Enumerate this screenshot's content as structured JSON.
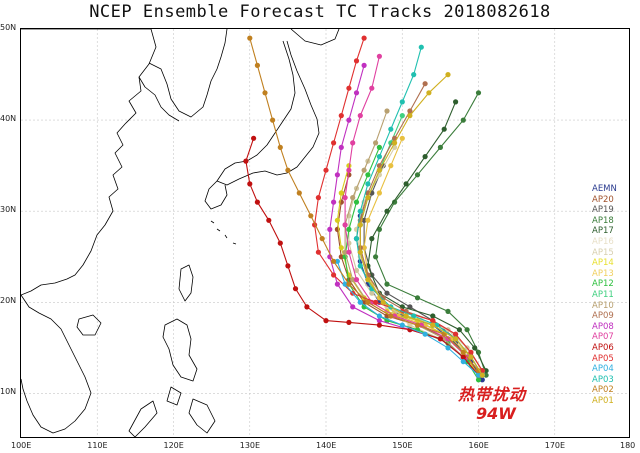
{
  "title": "NCEP Ensemble Forecast TC Tracks 2018082618",
  "map": {
    "lon_range": [
      100,
      180
    ],
    "lat_range": [
      5,
      50
    ],
    "lat_labels": [
      "50N",
      "40N",
      "30N",
      "20N",
      "10N"
    ],
    "lon_labels": [
      "100E",
      "110E",
      "120E",
      "130E",
      "140E",
      "150E",
      "160E",
      "170E",
      "180"
    ]
  },
  "legend": {
    "items": [
      {
        "label": "AEMN",
        "color": "#2a3b8f"
      },
      {
        "label": "AP20",
        "color": "#a0522d"
      },
      {
        "label": "AP19",
        "color": "#555555"
      },
      {
        "label": "AP18",
        "color": "#3b7d3b"
      },
      {
        "label": "AP17",
        "color": "#2e5e2e"
      },
      {
        "label": "AP16",
        "color": "#e8e0c8"
      },
      {
        "label": "AP15",
        "color": "#d8d0b0"
      },
      {
        "label": "AP14",
        "color": "#e8e030"
      },
      {
        "label": "AP13",
        "color": "#f0d060"
      },
      {
        "label": "AP12",
        "color": "#30c040"
      },
      {
        "label": "AP11",
        "color": "#40d080"
      },
      {
        "label": "AP10",
        "color": "#b8a070"
      },
      {
        "label": "AP09",
        "color": "#b07050"
      },
      {
        "label": "AP08",
        "color": "#c030c0"
      },
      {
        "label": "AP07",
        "color": "#e040a0"
      },
      {
        "label": "AP06",
        "color": "#c01010"
      },
      {
        "label": "AP05",
        "color": "#e03030"
      },
      {
        "label": "AP04",
        "color": "#30b0e0"
      },
      {
        "label": "AP03",
        "color": "#20c0b0"
      },
      {
        "label": "AP02",
        "color": "#c08020"
      },
      {
        "label": "AP01",
        "color": "#d0b020"
      }
    ]
  },
  "storm": {
    "label_cn": "热带扰动",
    "label_id": "94W",
    "color": "#d81e1e"
  },
  "tracks": [
    {
      "member": "AEMN",
      "color": "#2a3b8f",
      "points": [
        [
          160.5,
          11.5
        ],
        [
          159,
          13.5
        ],
        [
          157,
          15.5
        ],
        [
          154,
          17.5
        ],
        [
          150,
          18.5
        ],
        [
          147,
          20
        ],
        [
          145.5,
          22
        ],
        [
          144.5,
          24.5
        ],
        [
          144,
          27
        ],
        [
          144.5,
          29.5
        ],
        [
          145.5,
          32
        ]
      ]
    },
    {
      "member": "AP20",
      "color": "#a0522d",
      "points": [
        [
          160,
          12
        ],
        [
          158.5,
          14
        ],
        [
          156,
          16
        ],
        [
          152,
          17.5
        ],
        [
          148,
          18.5
        ],
        [
          145,
          20
        ],
        [
          143,
          22.5
        ],
        [
          142,
          25
        ],
        [
          141.5,
          28
        ],
        [
          142,
          31
        ],
        [
          143,
          34
        ]
      ]
    },
    {
      "member": "AP19",
      "color": "#555555",
      "points": [
        [
          160.5,
          12
        ],
        [
          159,
          14
        ],
        [
          157,
          16
        ],
        [
          154,
          18
        ],
        [
          151,
          19.5
        ],
        [
          148,
          21
        ],
        [
          146,
          23
        ],
        [
          145,
          26
        ],
        [
          145,
          29
        ],
        [
          146,
          32
        ],
        [
          147.5,
          35
        ]
      ]
    },
    {
      "member": "AP18",
      "color": "#3b7d3b",
      "points": [
        [
          161,
          12
        ],
        [
          160,
          14.5
        ],
        [
          158.5,
          17
        ],
        [
          156,
          19
        ],
        [
          152,
          20.5
        ],
        [
          148,
          22
        ],
        [
          146.5,
          25
        ],
        [
          147,
          28
        ],
        [
          149,
          31
        ],
        [
          152,
          34
        ],
        [
          155,
          37
        ],
        [
          158,
          40
        ],
        [
          160,
          43
        ]
      ]
    },
    {
      "member": "AP17",
      "color": "#2e5e2e",
      "points": [
        [
          161,
          12.5
        ],
        [
          159.5,
          15
        ],
        [
          157.5,
          17
        ],
        [
          154,
          18.5
        ],
        [
          150,
          19.5
        ],
        [
          147,
          21
        ],
        [
          145.5,
          24
        ],
        [
          146,
          27
        ],
        [
          148,
          30
        ],
        [
          150.5,
          33
        ],
        [
          153,
          36
        ],
        [
          155.5,
          39
        ],
        [
          157,
          42
        ]
      ]
    },
    {
      "member": "AP16",
      "color": "#d8cfa8",
      "points": [
        [
          160,
          12
        ],
        [
          158,
          14
        ],
        [
          155,
          16
        ],
        [
          151,
          17.5
        ],
        [
          148,
          19.5
        ],
        [
          146,
          22
        ],
        [
          144.5,
          25
        ],
        [
          144,
          28
        ],
        [
          145,
          31
        ],
        [
          147,
          34
        ],
        [
          149,
          37
        ]
      ]
    },
    {
      "member": "AP15",
      "color": "#cfc6a0",
      "points": [
        [
          160.5,
          12.5
        ],
        [
          158.5,
          15
        ],
        [
          156,
          17
        ],
        [
          152.5,
          18
        ],
        [
          149,
          19
        ],
        [
          146,
          21
        ],
        [
          144,
          23.5
        ],
        [
          143,
          26.5
        ],
        [
          143,
          29.5
        ],
        [
          144,
          32.5
        ],
        [
          145.5,
          35.5
        ]
      ]
    },
    {
      "member": "AP14",
      "color": "#d8cc20",
      "points": [
        [
          160,
          12
        ],
        [
          158,
          14.5
        ],
        [
          155.5,
          16.5
        ],
        [
          152,
          18
        ],
        [
          148,
          19
        ],
        [
          145,
          20.5
        ],
        [
          143,
          23
        ],
        [
          142,
          26
        ],
        [
          141.5,
          29
        ],
        [
          142,
          32
        ],
        [
          143,
          35
        ]
      ]
    },
    {
      "member": "AP13",
      "color": "#e8c040",
      "points": [
        [
          160.5,
          12
        ],
        [
          159,
          14
        ],
        [
          156.5,
          16
        ],
        [
          153,
          17.5
        ],
        [
          149.5,
          18.5
        ],
        [
          147,
          20.5
        ],
        [
          145.5,
          23
        ],
        [
          145,
          26
        ],
        [
          145.5,
          29
        ],
        [
          147,
          32
        ],
        [
          148.5,
          35
        ],
        [
          150,
          38
        ]
      ]
    },
    {
      "member": "AP12",
      "color": "#30c040",
      "points": [
        [
          160,
          11.5
        ],
        [
          158.5,
          13.5
        ],
        [
          156,
          15.5
        ],
        [
          152,
          17
        ],
        [
          148,
          18
        ],
        [
          145,
          19.5
        ],
        [
          143,
          22
        ],
        [
          142.5,
          25
        ],
        [
          143,
          28
        ],
        [
          144,
          31
        ],
        [
          145.5,
          34
        ],
        [
          147,
          37
        ]
      ]
    },
    {
      "member": "AP11",
      "color": "#40d080",
      "points": [
        [
          160.5,
          12
        ],
        [
          159,
          14
        ],
        [
          157,
          16
        ],
        [
          154,
          17.5
        ],
        [
          150.5,
          18.5
        ],
        [
          147.5,
          20
        ],
        [
          145.5,
          22.5
        ],
        [
          144.5,
          25.5
        ],
        [
          144.5,
          28.5
        ],
        [
          145.5,
          31.5
        ],
        [
          147,
          34.5
        ],
        [
          148.5,
          37.5
        ],
        [
          150,
          40.5
        ]
      ]
    },
    {
      "member": "AP10",
      "color": "#b8a070",
      "points": [
        [
          160,
          12
        ],
        [
          158,
          14
        ],
        [
          155.5,
          16
        ],
        [
          152,
          17.5
        ],
        [
          148.5,
          18.5
        ],
        [
          145.5,
          20
        ],
        [
          143.5,
          22.5
        ],
        [
          142.5,
          25.5
        ],
        [
          142.5,
          28.5
        ],
        [
          143.5,
          31.5
        ],
        [
          145,
          34.5
        ],
        [
          146.5,
          37.5
        ],
        [
          148,
          41
        ]
      ]
    },
    {
      "member": "AP09",
      "color": "#b07050",
      "points": [
        [
          160.5,
          12.5
        ],
        [
          159,
          14.5
        ],
        [
          157,
          16.5
        ],
        [
          154,
          18
        ],
        [
          150.5,
          19
        ],
        [
          147.5,
          20.5
        ],
        [
          145.5,
          23
        ],
        [
          144.5,
          26
        ],
        [
          144.5,
          29
        ],
        [
          145.5,
          32
        ],
        [
          147,
          35
        ],
        [
          149,
          38
        ],
        [
          151,
          41
        ],
        [
          153,
          44
        ]
      ]
    },
    {
      "member": "AP08",
      "color": "#c030c0",
      "points": [
        [
          160,
          12
        ],
        [
          158,
          14
        ],
        [
          155,
          16
        ],
        [
          151,
          17
        ],
        [
          147,
          18
        ],
        [
          143.5,
          19.5
        ],
        [
          141.5,
          22
        ],
        [
          140.5,
          25
        ],
        [
          140.5,
          28
        ],
        [
          141,
          31
        ],
        [
          141.5,
          34
        ],
        [
          142,
          37
        ],
        [
          143,
          40
        ],
        [
          144,
          43
        ],
        [
          145,
          46
        ]
      ]
    },
    {
      "member": "AP07",
      "color": "#e040a0",
      "points": [
        [
          160.5,
          12
        ],
        [
          158.5,
          14
        ],
        [
          156,
          16
        ],
        [
          152.5,
          17.5
        ],
        [
          149,
          18.5
        ],
        [
          146,
          20
        ],
        [
          144,
          22.5
        ],
        [
          143,
          25.5
        ],
        [
          142.5,
          28.5
        ],
        [
          142.5,
          31.5
        ],
        [
          143,
          34.5
        ],
        [
          143.5,
          37.5
        ],
        [
          144.5,
          40.5
        ],
        [
          146,
          43.5
        ],
        [
          147,
          47
        ]
      ]
    },
    {
      "member": "AP06",
      "color": "#c01010",
      "points": [
        [
          160,
          12
        ],
        [
          158,
          14
        ],
        [
          155,
          16
        ],
        [
          151,
          17
        ],
        [
          147,
          17.5
        ],
        [
          143,
          17.8
        ],
        [
          140,
          18
        ],
        [
          137.5,
          19.5
        ],
        [
          136,
          21.5
        ],
        [
          135,
          24
        ],
        [
          134,
          26.5
        ],
        [
          132.5,
          29
        ],
        [
          131,
          31
        ],
        [
          130,
          33
        ],
        [
          129.5,
          35.5
        ],
        [
          130.5,
          38
        ]
      ]
    },
    {
      "member": "AP05",
      "color": "#e03030",
      "points": [
        [
          160.5,
          12.5
        ],
        [
          159,
          14.5
        ],
        [
          157,
          16.5
        ],
        [
          154,
          18
        ],
        [
          150,
          19
        ],
        [
          146.5,
          20
        ],
        [
          143.5,
          21
        ],
        [
          141,
          23
        ],
        [
          139,
          25.5
        ],
        [
          138.5,
          28.5
        ],
        [
          139,
          31.5
        ],
        [
          140,
          34.5
        ],
        [
          141,
          37.5
        ],
        [
          142,
          40.5
        ],
        [
          143,
          43.5
        ],
        [
          144,
          46.5
        ],
        [
          145,
          49
        ]
      ]
    },
    {
      "member": "AP04",
      "color": "#30b0e0",
      "points": [
        [
          160,
          12
        ],
        [
          158,
          13.5
        ],
        [
          156,
          15
        ],
        [
          153,
          16.5
        ],
        [
          150,
          17.5
        ],
        [
          147,
          18.5
        ],
        [
          144.5,
          20
        ],
        [
          142.5,
          22
        ],
        [
          141.5,
          24.5
        ]
      ]
    },
    {
      "member": "AP03",
      "color": "#20c0b0",
      "points": [
        [
          160.5,
          12
        ],
        [
          159,
          14
        ],
        [
          157,
          16
        ],
        [
          154.5,
          17.5
        ],
        [
          151.5,
          18.5
        ],
        [
          148.5,
          19.5
        ],
        [
          146,
          21.5
        ],
        [
          144.5,
          24
        ],
        [
          144,
          27
        ],
        [
          144.5,
          30
        ],
        [
          145.5,
          33
        ],
        [
          147,
          36
        ],
        [
          148.5,
          39
        ],
        [
          150,
          42
        ],
        [
          151.5,
          45
        ],
        [
          152.5,
          48
        ]
      ]
    },
    {
      "member": "AP02",
      "color": "#c08020",
      "points": [
        [
          160,
          12.5
        ],
        [
          158,
          14.5
        ],
        [
          155.5,
          16.5
        ],
        [
          152,
          17.5
        ],
        [
          148.5,
          18.5
        ],
        [
          145.5,
          20
        ],
        [
          143,
          22
        ],
        [
          141,
          24.5
        ],
        [
          139.5,
          27
        ],
        [
          138,
          29.5
        ],
        [
          136.5,
          32
        ],
        [
          135,
          34.5
        ],
        [
          134,
          37
        ],
        [
          133,
          40
        ],
        [
          132,
          43
        ],
        [
          131,
          46
        ],
        [
          130,
          49
        ]
      ]
    },
    {
      "member": "AP01",
      "color": "#d0b020",
      "points": [
        [
          160.5,
          12
        ],
        [
          159,
          14
        ],
        [
          157,
          16
        ],
        [
          154,
          17.5
        ],
        [
          150.5,
          18.5
        ],
        [
          147.5,
          20
        ],
        [
          145.5,
          22.5
        ],
        [
          144.5,
          25.5
        ],
        [
          144.5,
          28.5
        ],
        [
          145.5,
          31.5
        ],
        [
          147,
          34.5
        ],
        [
          149,
          37.5
        ],
        [
          151,
          40.5
        ],
        [
          153.5,
          43
        ],
        [
          156,
          45
        ]
      ]
    }
  ]
}
